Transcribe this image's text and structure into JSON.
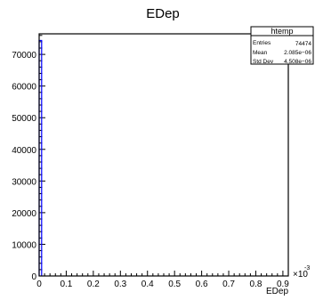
{
  "chart_data": {
    "type": "bar",
    "title": "EDep",
    "xlabel": "EDep",
    "ylabel": "",
    "x_exponent_label": "×10",
    "x_exponent_power": "-3",
    "xlim": [
      0,
      0.00092
    ],
    "ylim": [
      0,
      76500
    ],
    "x_ticks": [
      {
        "value": 0,
        "label": "0"
      },
      {
        "value": 0.0001,
        "label": "0.1"
      },
      {
        "value": 0.0002,
        "label": "0.2"
      },
      {
        "value": 0.0003,
        "label": "0.3"
      },
      {
        "value": 0.0004,
        "label": "0.4"
      },
      {
        "value": 0.0005,
        "label": "0.5"
      },
      {
        "value": 0.0006,
        "label": "0.6"
      },
      {
        "value": 0.0007,
        "label": "0.7"
      },
      {
        "value": 0.0008,
        "label": "0.8"
      },
      {
        "value": 0.0009,
        "label": "0.9"
      }
    ],
    "y_ticks": [
      {
        "value": 0,
        "label": "0"
      },
      {
        "value": 10000,
        "label": "10000"
      },
      {
        "value": 20000,
        "label": "20000"
      },
      {
        "value": 30000,
        "label": "30000"
      },
      {
        "value": 40000,
        "label": "40000"
      },
      {
        "value": 50000,
        "label": "50000"
      },
      {
        "value": 60000,
        "label": "60000"
      },
      {
        "value": 70000,
        "label": "70000"
      }
    ],
    "bins": [
      {
        "x0": 0,
        "x1": 9.2e-06,
        "value": 74400
      }
    ],
    "grid": false,
    "legend": "none",
    "stats_box": {
      "title": "htemp",
      "position": "top-right",
      "rows": [
        {
          "label": "Entries",
          "value": "74474"
        },
        {
          "label": "Mean",
          "value": "2.085e−06"
        },
        {
          "label": "Std Dev",
          "value": "4.508e−06"
        }
      ]
    },
    "colors": {
      "line": "#0000ff",
      "frame": "#000000",
      "background": "#ffffff"
    }
  }
}
